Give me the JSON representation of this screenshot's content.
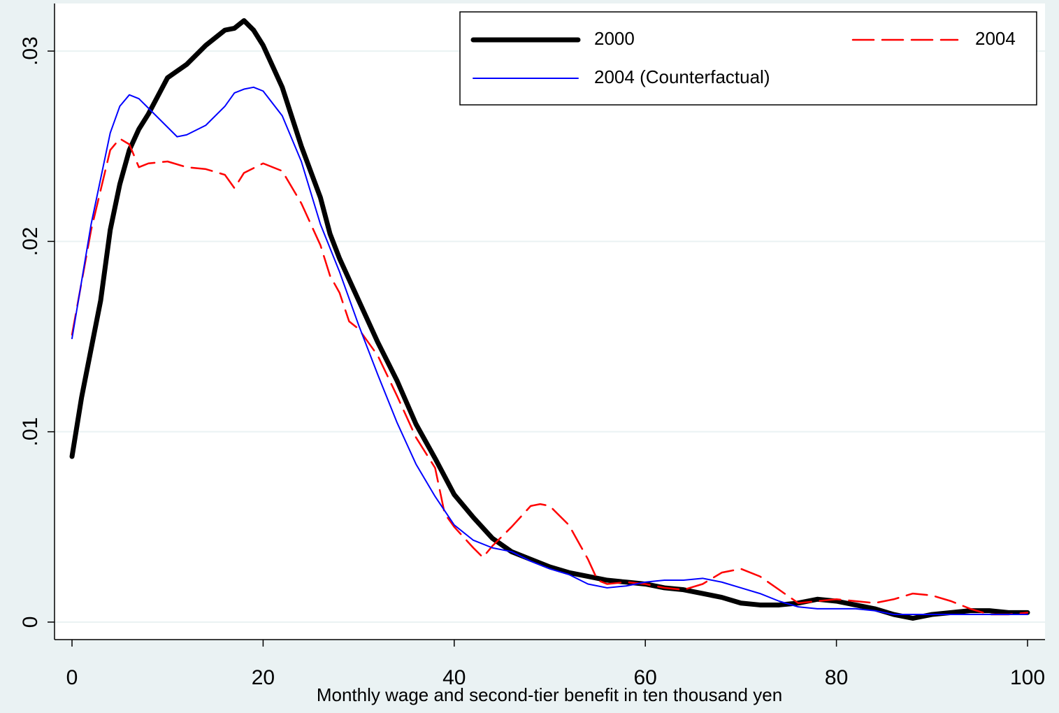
{
  "chart_data": {
    "type": "line",
    "x_label": "Monthly wage and second-tier benefit in ten thousand yen",
    "xlim": [
      -1.83,
      101.83
    ],
    "ylim": [
      -0.00092,
      0.0325
    ],
    "xticks": [
      0,
      20,
      40,
      60,
      80,
      100
    ],
    "yticks": [
      0,
      {
        "value": 0.01,
        "label": ".01"
      },
      {
        "value": 0.02,
        "label": ".02"
      },
      {
        "value": 0.03,
        "label": ".03"
      }
    ],
    "grid": true,
    "legend": "top-right",
    "series": [
      {
        "name": "2000",
        "color": "#000000",
        "style": "thick",
        "x": [
          0,
          1,
          3,
          4,
          5,
          6,
          7,
          8,
          10,
          12,
          14,
          16,
          17,
          18,
          19,
          20,
          22,
          24,
          26,
          27,
          28,
          30,
          32,
          34,
          36,
          38,
          40,
          42,
          44,
          46,
          48,
          50,
          52,
          54,
          56,
          58,
          60,
          62,
          64,
          66,
          68,
          70,
          72,
          74,
          76,
          78,
          80,
          82,
          84,
          86,
          88,
          90,
          92,
          94,
          96,
          98,
          100
        ],
        "values": [
          0.0087,
          0.0118,
          0.0169,
          0.0206,
          0.023,
          0.0248,
          0.0259,
          0.0267,
          0.0286,
          0.0293,
          0.0303,
          0.0311,
          0.0312,
          0.0316,
          0.0311,
          0.0303,
          0.0281,
          0.025,
          0.0223,
          0.0204,
          0.0191,
          0.0169,
          0.0147,
          0.0127,
          0.0104,
          0.0086,
          0.0067,
          0.0055,
          0.0044,
          0.0037,
          0.0033,
          0.0029,
          0.0026,
          0.0024,
          0.0022,
          0.0021,
          0.002,
          0.0018,
          0.0017,
          0.0015,
          0.0013,
          0.001,
          0.0009,
          0.0009,
          0.001,
          0.0012,
          0.0011,
          0.0009,
          0.0007,
          0.0004,
          0.0002,
          0.0004,
          0.0005,
          0.0006,
          0.0006,
          0.0005,
          0.0005
        ]
      },
      {
        "name": "2004",
        "color": "#ff0000",
        "style": "dashed",
        "x": [
          0,
          2,
          4,
          5,
          6,
          7,
          8,
          10,
          12,
          14,
          16,
          17,
          18,
          20,
          22,
          24,
          26,
          27,
          28,
          29,
          30,
          32,
          34,
          36,
          38,
          39,
          40,
          42,
          43,
          44,
          46,
          48,
          49,
          50,
          52,
          54,
          55,
          56,
          58,
          60,
          62,
          64,
          66,
          68,
          70,
          72,
          74,
          76,
          78,
          80,
          82,
          84,
          86,
          88,
          90,
          92,
          94,
          96,
          98,
          100
        ],
        "values": [
          0.0151,
          0.0206,
          0.0248,
          0.0254,
          0.0251,
          0.0239,
          0.0241,
          0.0242,
          0.0239,
          0.0238,
          0.0235,
          0.0228,
          0.0236,
          0.0241,
          0.0237,
          0.022,
          0.0198,
          0.0182,
          0.0173,
          0.0158,
          0.0154,
          0.014,
          0.0119,
          0.0097,
          0.0081,
          0.0057,
          0.005,
          0.0039,
          0.0034,
          0.004,
          0.005,
          0.0061,
          0.0062,
          0.0061,
          0.0051,
          0.0033,
          0.0022,
          0.002,
          0.0021,
          0.002,
          0.0018,
          0.0017,
          0.002,
          0.0026,
          0.0028,
          0.0024,
          0.0017,
          0.001,
          0.0011,
          0.0012,
          0.0011,
          0.001,
          0.0012,
          0.0015,
          0.0014,
          0.0011,
          0.0007,
          0.0004,
          0.0004,
          0.0005
        ]
      },
      {
        "name": "2004 (Counterfactual)",
        "color": "#0000ff",
        "style": "thin",
        "x": [
          0,
          2,
          4,
          5,
          6,
          7,
          8,
          10,
          11,
          12,
          14,
          16,
          17,
          18,
          19,
          20,
          22,
          24,
          26,
          28,
          30,
          32,
          34,
          36,
          38,
          40,
          42,
          44,
          46,
          48,
          50,
          52,
          54,
          56,
          58,
          60,
          62,
          64,
          66,
          68,
          70,
          72,
          74,
          76,
          78,
          80,
          82,
          84,
          86,
          88,
          90,
          92,
          94,
          96,
          98,
          100
        ],
        "values": [
          0.0149,
          0.0209,
          0.0257,
          0.0271,
          0.0277,
          0.0275,
          0.027,
          0.026,
          0.0255,
          0.0256,
          0.0261,
          0.0271,
          0.0278,
          0.028,
          0.0281,
          0.0279,
          0.0266,
          0.0242,
          0.0209,
          0.0184,
          0.0156,
          0.013,
          0.0105,
          0.0083,
          0.0066,
          0.0051,
          0.0043,
          0.0039,
          0.0037,
          0.0032,
          0.0028,
          0.0025,
          0.002,
          0.0018,
          0.0019,
          0.0021,
          0.0022,
          0.0022,
          0.0023,
          0.0021,
          0.0018,
          0.0015,
          0.0011,
          0.0008,
          0.0007,
          0.0007,
          0.0007,
          0.0006,
          0.0004,
          0.0004,
          0.0004,
          0.0004,
          0.0004,
          0.0004,
          0.0004,
          0.0004
        ]
      }
    ]
  }
}
